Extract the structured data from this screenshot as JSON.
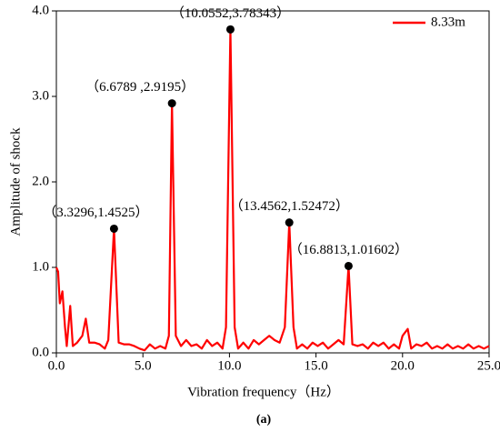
{
  "chart_data": {
    "type": "line",
    "xlabel": "Vibration frequency（Hz）",
    "ylabel": "Amplitude of shock",
    "caption": "(a)",
    "xlim": [
      0,
      25
    ],
    "ylim": [
      0,
      4
    ],
    "xticks": [
      {
        "value": 0,
        "label": "0.0"
      },
      {
        "value": 5,
        "label": "5.0"
      },
      {
        "value": 10,
        "label": "10.0"
      },
      {
        "value": 15,
        "label": "15.0"
      },
      {
        "value": 20,
        "label": "20.0"
      },
      {
        "value": 25,
        "label": "25.0"
      }
    ],
    "yticks": [
      {
        "value": 0,
        "label": "0.0"
      },
      {
        "value": 1,
        "label": "1.0"
      },
      {
        "value": 2,
        "label": "2.0"
      },
      {
        "value": 3,
        "label": "3.0"
      },
      {
        "value": 4,
        "label": "4.0"
      }
    ],
    "legend": "upper right",
    "series": [
      {
        "name": "8.33m",
        "color": "#ff0000",
        "x": [
          0,
          0.1,
          0.2,
          0.35,
          0.5,
          0.6,
          0.8,
          0.95,
          1.2,
          1.5,
          1.7,
          1.9,
          2.2,
          2.5,
          2.8,
          3.0,
          3.3296,
          3.6,
          3.9,
          4.2,
          4.5,
          4.8,
          5.1,
          5.4,
          5.7,
          6.0,
          6.3,
          6.5,
          6.6789,
          6.9,
          7.2,
          7.5,
          7.8,
          8.1,
          8.4,
          8.7,
          9.0,
          9.3,
          9.6,
          9.8,
          10.0552,
          10.3,
          10.5,
          10.8,
          11.1,
          11.4,
          11.7,
          12.0,
          12.3,
          12.6,
          12.9,
          13.2,
          13.4562,
          13.7,
          13.9,
          14.2,
          14.5,
          14.8,
          15.1,
          15.4,
          15.7,
          16.0,
          16.3,
          16.6,
          16.8813,
          17.1,
          17.4,
          17.7,
          18.0,
          18.3,
          18.6,
          18.9,
          19.2,
          19.5,
          19.8,
          20.0,
          20.3,
          20.5,
          20.8,
          21.1,
          21.4,
          21.7,
          22.0,
          22.3,
          22.6,
          22.9,
          23.2,
          23.5,
          23.8,
          24.1,
          24.4,
          24.7,
          25.0
        ],
        "values": [
          1.0,
          0.95,
          0.58,
          0.72,
          0.3,
          0.08,
          0.55,
          0.08,
          0.12,
          0.2,
          0.4,
          0.12,
          0.12,
          0.1,
          0.05,
          0.15,
          1.4525,
          0.12,
          0.1,
          0.1,
          0.08,
          0.05,
          0.03,
          0.1,
          0.05,
          0.08,
          0.05,
          0.2,
          2.9195,
          0.2,
          0.08,
          0.15,
          0.08,
          0.1,
          0.05,
          0.15,
          0.08,
          0.12,
          0.05,
          0.3,
          3.78343,
          0.3,
          0.05,
          0.12,
          0.05,
          0.15,
          0.1,
          0.15,
          0.2,
          0.15,
          0.12,
          0.3,
          1.52472,
          0.3,
          0.05,
          0.1,
          0.05,
          0.12,
          0.08,
          0.12,
          0.05,
          0.1,
          0.15,
          0.1,
          1.01602,
          0.1,
          0.08,
          0.1,
          0.05,
          0.12,
          0.08,
          0.12,
          0.05,
          0.1,
          0.05,
          0.2,
          0.28,
          0.05,
          0.1,
          0.08,
          0.12,
          0.05,
          0.08,
          0.05,
          0.1,
          0.05,
          0.08,
          0.05,
          0.1,
          0.05,
          0.08,
          0.05,
          0.08
        ]
      }
    ],
    "annotations": [
      {
        "text": "（3.3296,1.4525）",
        "x": 3.3296,
        "y": 1.4525
      },
      {
        "text": "（6.6789 ,2.9195）",
        "x": 6.6789,
        "y": 2.9195
      },
      {
        "text": "（10.0552,3.78343）",
        "x": 10.0552,
        "y": 3.78343
      },
      {
        "text": "（13.4562,1.52472）",
        "x": 13.4562,
        "y": 1.52472
      },
      {
        "text": "（16.8813,1.01602）",
        "x": 16.8813,
        "y": 1.01602
      }
    ]
  }
}
